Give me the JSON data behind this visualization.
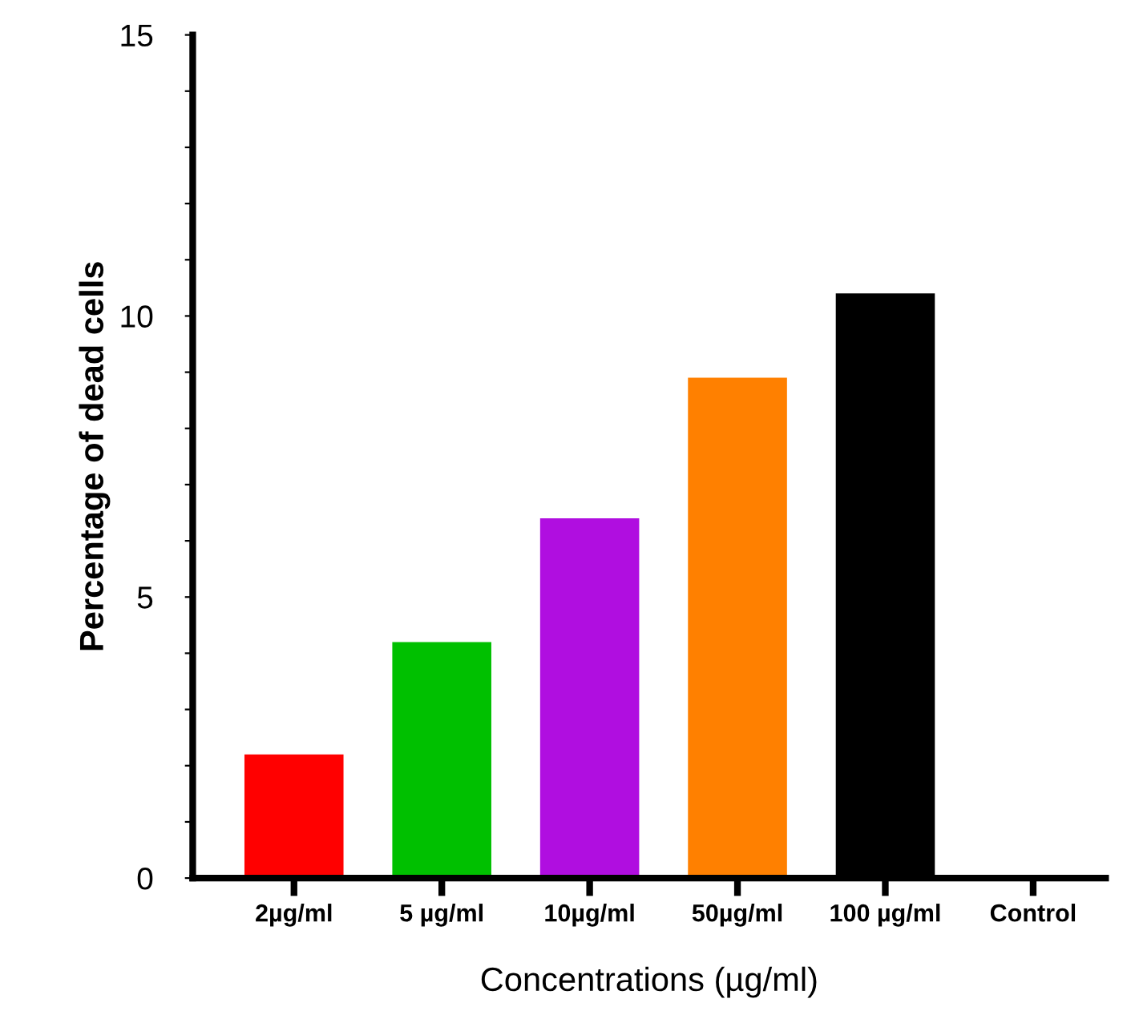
{
  "chart_data": {
    "type": "bar",
    "xlabel": "Concentrations (µg/ml)",
    "ylabel": "Percentage of dead cells",
    "categories": [
      "2µg/ml",
      "5 µg/ml",
      "10µg/ml",
      "50µg/ml",
      "100 µg/ml",
      "Control"
    ],
    "values": [
      2.2,
      4.2,
      6.4,
      8.9,
      10.4,
      0
    ],
    "colors": [
      "#ff0000",
      "#00c000",
      "#b00ee0",
      "#ff8000",
      "#000000",
      "#000000"
    ],
    "ylim": [
      0,
      15
    ],
    "yticks": [
      0,
      {
        "value": 1,
        "label": null
      },
      {
        "value": 2,
        "label": null
      },
      {
        "value": 3,
        "label": null
      },
      {
        "value": 4,
        "label": null
      },
      5,
      {
        "value": 6,
        "label": null
      },
      {
        "value": 7,
        "label": null
      },
      {
        "value": 8,
        "label": null
      },
      {
        "value": 9,
        "label": null
      },
      10,
      {
        "value": 11,
        "label": null
      },
      {
        "value": 12,
        "label": null
      },
      {
        "value": 13,
        "label": null
      },
      {
        "value": 14,
        "label": null
      },
      15
    ],
    "grid": false,
    "legend": false
  }
}
